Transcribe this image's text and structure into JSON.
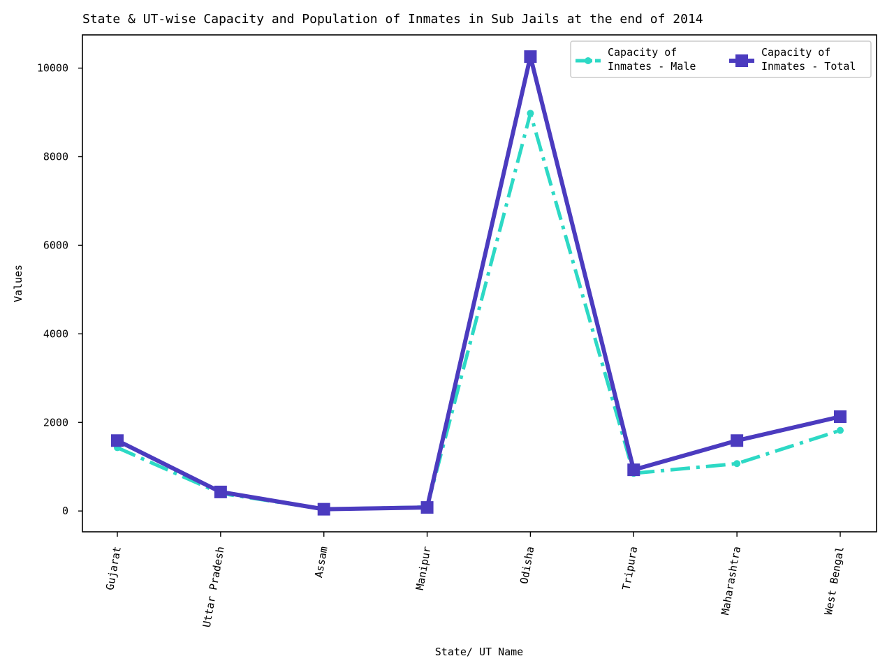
{
  "chart_data": {
    "type": "line",
    "title": "State & UT-wise Capacity and Population of Inmates in Sub Jails at the end of 2014",
    "xlabel": "State/ UT Name",
    "ylabel": "Values",
    "categories": [
      "Gujarat",
      "Uttar Pradesh",
      "Assam",
      "Manipur",
      "Odisha",
      "Tripura",
      "Maharashtra",
      "West Bengal"
    ],
    "ylim": [
      -470,
      10750
    ],
    "yticks": [
      "0",
      "2000",
      "4000",
      "6000",
      "8000",
      "10000"
    ],
    "grid": false,
    "legend_position": "top-right",
    "series": [
      {
        "name": "Capacity of Inmates - Male",
        "legend_lines": [
          "Capacity of",
          "Inmates - Male"
        ],
        "values": [
          1430,
          400,
          40,
          90,
          8980,
          850,
          1070,
          1820
        ],
        "color": "#2dd9c5",
        "line_style": "dash-dot",
        "marker": "circle"
      },
      {
        "name": "Capacity of Inmates - Total",
        "legend_lines": [
          "Capacity of",
          "Inmates - Total"
        ],
        "values": [
          1590,
          430,
          40,
          80,
          10260,
          930,
          1590,
          2130
        ],
        "color": "#4b3bbf",
        "line_style": "solid",
        "marker": "square"
      }
    ]
  }
}
